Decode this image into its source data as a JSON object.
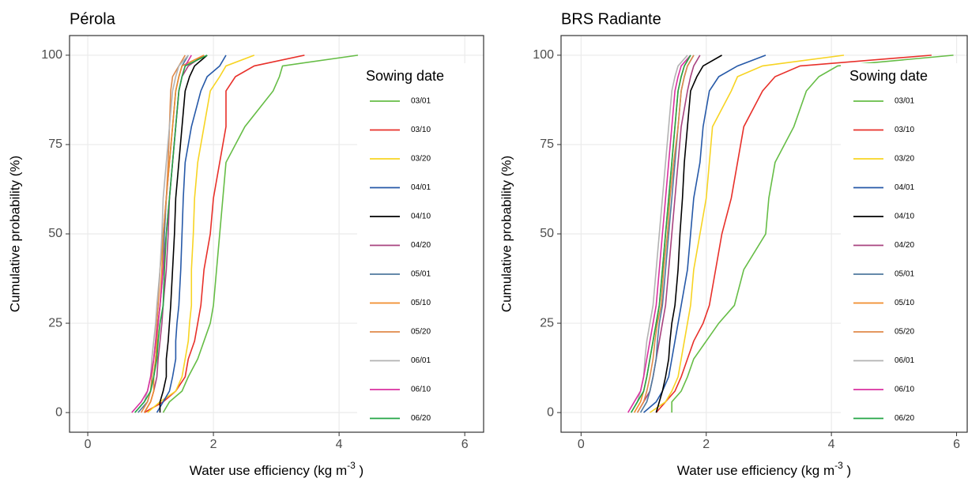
{
  "chart_data": [
    {
      "type": "line",
      "title": "Pérola",
      "x_label": "Water use efficiency (kg m",
      "x_label_sup": "-3",
      "x_label_end": " )",
      "y_label": "Cumulative probability (%)",
      "legend_title": "Sowing date",
      "legend": "upper right",
      "grid": true,
      "xlim": [
        -0.29,
        6.3
      ],
      "ylim": [
        -5.5,
        105.5
      ],
      "xticks": [
        0,
        2,
        4,
        6
      ],
      "yticks": [
        0,
        25,
        50,
        75,
        100
      ],
      "y": [
        0,
        3,
        6,
        10,
        15,
        20,
        25,
        30,
        40,
        50,
        60,
        70,
        80,
        90,
        94,
        97,
        100
      ],
      "series": [
        {
          "name": "03/01",
          "color": "#66bd46",
          "x": [
            1.2,
            1.3,
            1.5,
            1.6,
            1.75,
            1.85,
            1.95,
            2.0,
            2.05,
            2.1,
            2.15,
            2.2,
            2.5,
            2.95,
            3.05,
            3.1,
            4.3
          ]
        },
        {
          "name": "03/10",
          "color": "#e8302a",
          "x": [
            0.9,
            1.2,
            1.4,
            1.55,
            1.6,
            1.7,
            1.75,
            1.8,
            1.85,
            1.95,
            2.0,
            2.1,
            2.2,
            2.2,
            2.35,
            2.65,
            3.45
          ]
        },
        {
          "name": "03/20",
          "color": "#f7d423",
          "x": [
            0.95,
            1.15,
            1.4,
            1.5,
            1.55,
            1.6,
            1.62,
            1.65,
            1.65,
            1.68,
            1.7,
            1.75,
            1.85,
            1.95,
            2.1,
            2.2,
            2.65
          ]
        },
        {
          "name": "04/01",
          "color": "#2659a8",
          "x": [
            1.1,
            1.2,
            1.3,
            1.35,
            1.4,
            1.4,
            1.42,
            1.45,
            1.48,
            1.5,
            1.52,
            1.55,
            1.65,
            1.8,
            1.9,
            2.1,
            2.2
          ]
        },
        {
          "name": "04/10",
          "color": "#000000",
          "x": [
            1.15,
            1.15,
            1.2,
            1.25,
            1.25,
            1.28,
            1.3,
            1.32,
            1.35,
            1.38,
            1.4,
            1.45,
            1.5,
            1.55,
            1.62,
            1.7,
            1.9
          ]
        },
        {
          "name": "04/20",
          "color": "#a8437f",
          "x": [
            0.9,
            1.0,
            1.05,
            1.1,
            1.12,
            1.15,
            1.18,
            1.2,
            1.25,
            1.28,
            1.3,
            1.35,
            1.4,
            1.45,
            1.5,
            1.6,
            1.85
          ]
        },
        {
          "name": "05/01",
          "color": "#4f7a9e",
          "x": [
            0.8,
            0.95,
            1.0,
            1.05,
            1.08,
            1.1,
            1.12,
            1.15,
            1.2,
            1.22,
            1.25,
            1.3,
            1.35,
            1.4,
            1.45,
            1.5,
            1.6
          ]
        },
        {
          "name": "05/10",
          "color": "#f08c2b",
          "x": [
            0.9,
            1.0,
            1.05,
            1.05,
            1.08,
            1.1,
            1.12,
            1.15,
            1.18,
            1.2,
            1.25,
            1.3,
            1.35,
            1.4,
            1.45,
            1.5,
            1.85
          ]
        },
        {
          "name": "05/20",
          "color": "#e08a4a",
          "x": [
            0.85,
            0.95,
            1.0,
            1.02,
            1.05,
            1.08,
            1.1,
            1.12,
            1.15,
            1.2,
            1.25,
            1.28,
            1.3,
            1.32,
            1.35,
            1.45,
            1.55
          ]
        },
        {
          "name": "06/01",
          "color": "#b3b3b3",
          "x": [
            0.75,
            0.9,
            0.95,
            1.0,
            1.02,
            1.05,
            1.08,
            1.1,
            1.15,
            1.18,
            1.2,
            1.25,
            1.3,
            1.35,
            1.4,
            1.45,
            1.6
          ]
        },
        {
          "name": "06/10",
          "color": "#d930a0",
          "x": [
            0.7,
            0.85,
            0.95,
            1.0,
            1.05,
            1.08,
            1.12,
            1.15,
            1.2,
            1.25,
            1.3,
            1.35,
            1.4,
            1.45,
            1.5,
            1.55,
            1.65
          ]
        },
        {
          "name": "06/20",
          "color": "#22a545",
          "x": [
            0.75,
            0.9,
            1.0,
            1.05,
            1.1,
            1.12,
            1.15,
            1.2,
            1.22,
            1.25,
            1.3,
            1.35,
            1.4,
            1.45,
            1.5,
            1.55,
            1.9
          ]
        }
      ]
    },
    {
      "type": "line",
      "title": "BRS Radiante",
      "x_label": "Water use efficiency (kg m",
      "x_label_sup": "-3",
      "x_label_end": " )",
      "y_label": "Cumulative probability (%)",
      "legend_title": "Sowing date",
      "legend": "upper right",
      "grid": true,
      "xlim": [
        -0.32,
        6.17
      ],
      "ylim": [
        -5.5,
        105.5
      ],
      "xticks": [
        0,
        2,
        4,
        6
      ],
      "yticks": [
        0,
        25,
        50,
        75,
        100
      ],
      "y": [
        0,
        3,
        6,
        10,
        15,
        20,
        25,
        30,
        40,
        50,
        60,
        70,
        80,
        90,
        94,
        97,
        100
      ],
      "series": [
        {
          "name": "03/01",
          "color": "#66bd46",
          "x": [
            1.45,
            1.45,
            1.6,
            1.7,
            1.8,
            2.0,
            2.2,
            2.45,
            2.6,
            2.95,
            3.0,
            3.1,
            3.4,
            3.6,
            3.8,
            4.1,
            5.95
          ]
        },
        {
          "name": "03/10",
          "color": "#e8302a",
          "x": [
            1.2,
            1.35,
            1.5,
            1.6,
            1.7,
            1.8,
            1.95,
            2.05,
            2.15,
            2.25,
            2.4,
            2.5,
            2.6,
            2.9,
            3.1,
            3.5,
            5.6
          ]
        },
        {
          "name": "03/20",
          "color": "#f7d423",
          "x": [
            1.1,
            1.35,
            1.45,
            1.55,
            1.6,
            1.65,
            1.7,
            1.75,
            1.8,
            1.9,
            2.0,
            2.05,
            2.1,
            2.4,
            2.5,
            2.9,
            4.2
          ]
        },
        {
          "name": "04/01",
          "color": "#2659a8",
          "x": [
            1.0,
            1.2,
            1.3,
            1.4,
            1.45,
            1.5,
            1.55,
            1.6,
            1.7,
            1.75,
            1.8,
            1.9,
            1.95,
            2.05,
            2.2,
            2.5,
            2.95
          ]
        },
        {
          "name": "04/10",
          "color": "#000000",
          "x": [
            1.2,
            1.25,
            1.3,
            1.35,
            1.4,
            1.42,
            1.45,
            1.5,
            1.55,
            1.58,
            1.62,
            1.65,
            1.7,
            1.75,
            1.85,
            1.95,
            2.25
          ]
        },
        {
          "name": "04/20",
          "color": "#a8437f",
          "x": [
            0.9,
            1.0,
            1.1,
            1.15,
            1.2,
            1.25,
            1.3,
            1.35,
            1.4,
            1.45,
            1.5,
            1.55,
            1.6,
            1.7,
            1.75,
            1.8,
            1.9
          ]
        },
        {
          "name": "05/01",
          "color": "#4f7a9e",
          "x": [
            0.95,
            1.05,
            1.1,
            1.15,
            1.2,
            1.22,
            1.25,
            1.3,
            1.35,
            1.4,
            1.45,
            1.5,
            1.55,
            1.6,
            1.65,
            1.7,
            1.8
          ]
        },
        {
          "name": "05/10",
          "color": "#f08c2b",
          "x": [
            0.85,
            0.95,
            1.0,
            1.05,
            1.1,
            1.15,
            1.2,
            1.25,
            1.3,
            1.35,
            1.4,
            1.45,
            1.5,
            1.55,
            1.6,
            1.65,
            1.75
          ]
        },
        {
          "name": "05/20",
          "color": "#e08a4a",
          "x": [
            0.9,
            1.0,
            1.05,
            1.1,
            1.15,
            1.18,
            1.22,
            1.28,
            1.32,
            1.38,
            1.42,
            1.48,
            1.55,
            1.6,
            1.65,
            1.7,
            1.8
          ]
        },
        {
          "name": "06/01",
          "color": "#b3b3b3",
          "x": [
            0.8,
            0.9,
            0.95,
            1.0,
            1.02,
            1.05,
            1.1,
            1.15,
            1.2,
            1.25,
            1.3,
            1.35,
            1.4,
            1.45,
            1.5,
            1.55,
            1.7
          ]
        },
        {
          "name": "06/10",
          "color": "#d930a0",
          "x": [
            0.75,
            0.85,
            0.95,
            1.0,
            1.05,
            1.1,
            1.15,
            1.2,
            1.25,
            1.3,
            1.35,
            1.4,
            1.45,
            1.5,
            1.55,
            1.6,
            1.75
          ]
        },
        {
          "name": "06/20",
          "color": "#22a545",
          "x": [
            0.8,
            0.9,
            1.0,
            1.05,
            1.1,
            1.15,
            1.2,
            1.25,
            1.3,
            1.35,
            1.4,
            1.45,
            1.5,
            1.55,
            1.6,
            1.65,
            1.75
          ]
        }
      ]
    }
  ]
}
